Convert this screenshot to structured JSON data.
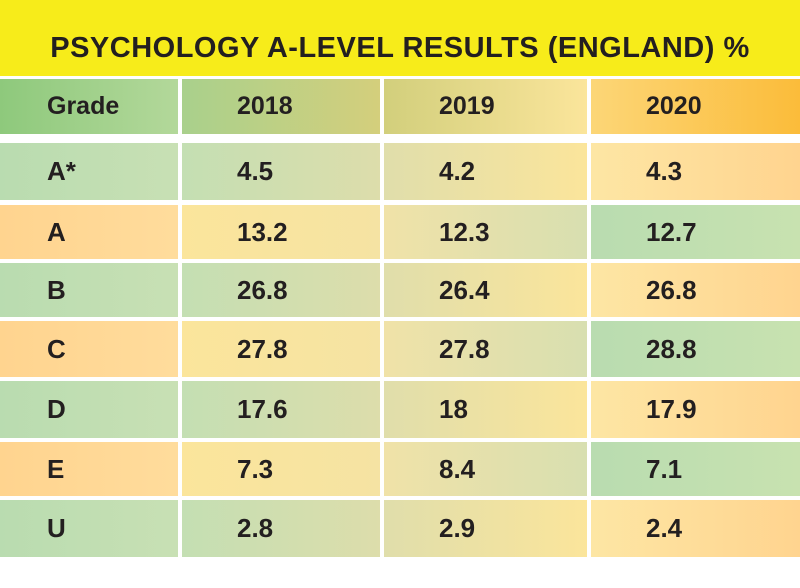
{
  "chart_data": {
    "type": "table",
    "title": "PSYCHOLOGY A-LEVEL RESULTS (ENGLAND) %",
    "columns": [
      "Grade",
      "2018",
      "2019",
      "2020"
    ],
    "rows": [
      [
        "A*",
        "4.5",
        "4.2",
        "4.3"
      ],
      [
        "A",
        "13.2",
        "12.3",
        "12.7"
      ],
      [
        "B",
        "26.8",
        "26.4",
        "26.8"
      ],
      [
        "C",
        "27.8",
        "27.8",
        "28.8"
      ],
      [
        "D",
        "17.6",
        "18",
        "17.9"
      ],
      [
        "E",
        "7.3",
        "8.4",
        "7.1"
      ],
      [
        "U",
        "2.8",
        "2.9",
        "2.4"
      ]
    ],
    "colors": {
      "title_background": "#f7ec1a",
      "green": "#b9dcb0",
      "orange": "#ffd48f",
      "pale_yellow": "#fbe59b",
      "header_green": "#8ec97c",
      "header_orange": "#fbbc3a"
    }
  }
}
